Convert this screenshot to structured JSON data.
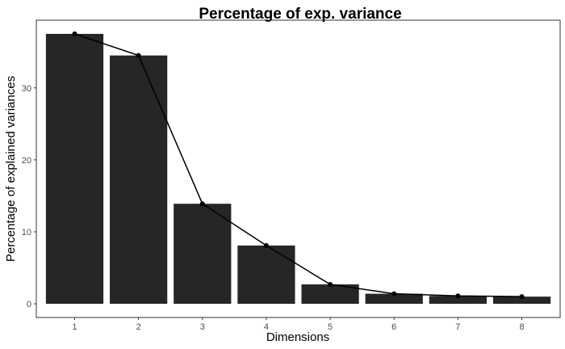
{
  "chart_data": {
    "type": "bar",
    "title": "Percentage of exp. variance",
    "xlabel": "Dimensions",
    "ylabel": "Percentage of explained variances",
    "categories": [
      "1",
      "2",
      "3",
      "4",
      "5",
      "6",
      "7",
      "8"
    ],
    "values": [
      37.5,
      34.5,
      13.9,
      8.1,
      2.7,
      1.4,
      1.1,
      1.0
    ],
    "overlay": "line-with-points",
    "ylim": [
      -1.9,
      39.4
    ],
    "yticks": [
      0,
      10,
      20,
      30
    ],
    "grid": false,
    "colors": {
      "bar": "#262626",
      "line": "#000000",
      "point": "#000000"
    }
  }
}
